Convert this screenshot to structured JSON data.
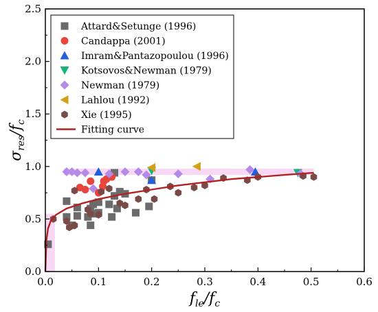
{
  "chart_data": {
    "type": "scatter",
    "xlabel": {
      "main": "f",
      "sub": "le",
      "sep": "/",
      "main2": "f",
      "sub2": "c"
    },
    "ylabel": {
      "main": "σ",
      "sub": "res",
      "sep": "/",
      "main2": "f",
      "sub2": "c"
    },
    "xlim": [
      0.0,
      0.6
    ],
    "ylim": [
      0.0,
      2.5
    ],
    "x_ticks": [
      "0.0",
      "0.1",
      "0.2",
      "0.3",
      "0.4",
      "0.5",
      "0.6"
    ],
    "y_ticks": [
      "0.0",
      "0.5",
      "1.0",
      "1.5",
      "2.0",
      "2.5"
    ],
    "legend_position": "top-left",
    "series": [
      {
        "name": "Attard&Setunge (1996)",
        "marker": "square",
        "color": "#6b6b6b",
        "points": [
          [
            0.005,
            0.26
          ],
          [
            0.04,
            0.52
          ],
          [
            0.04,
            0.67
          ],
          [
            0.05,
            0.44
          ],
          [
            0.06,
            0.53
          ],
          [
            0.06,
            0.61
          ],
          [
            0.08,
            0.52
          ],
          [
            0.085,
            0.6
          ],
          [
            0.09,
            0.55
          ],
          [
            0.085,
            0.44
          ],
          [
            0.09,
            0.64
          ],
          [
            0.1,
            0.56
          ],
          [
            0.1,
            0.66
          ],
          [
            0.12,
            0.64
          ],
          [
            0.125,
            0.52
          ],
          [
            0.13,
            0.72
          ],
          [
            0.135,
            0.6
          ],
          [
            0.14,
            0.76
          ],
          [
            0.15,
            0.74
          ],
          [
            0.17,
            0.56
          ],
          [
            0.195,
            0.62
          ],
          [
            0.2,
            0.87
          ],
          [
            0.13,
            0.94
          ]
        ]
      },
      {
        "name": "Candappa (2001)",
        "marker": "circle",
        "color": "#e8453c",
        "points": [
          [
            0.065,
            0.8
          ],
          [
            0.075,
            0.78
          ],
          [
            0.085,
            0.86
          ],
          [
            0.1,
            0.75
          ],
          [
            0.108,
            0.81
          ],
          [
            0.11,
            0.86
          ],
          [
            0.115,
            0.88
          ],
          [
            0.125,
            0.9
          ]
        ]
      },
      {
        "name": "Imram&Pantazopoulou (1996)",
        "marker": "triangle-up",
        "color": "#2060d8",
        "points": [
          [
            0.1,
            0.95
          ],
          [
            0.2,
            0.87
          ],
          [
            0.395,
            0.95
          ]
        ]
      },
      {
        "name": "Kotsovos&Newman (1979)",
        "marker": "triangle-down",
        "color": "#17b57a",
        "points": [
          [
            0.2,
            0.96
          ],
          [
            0.475,
            0.94
          ]
        ]
      },
      {
        "name": "Newman (1979)",
        "marker": "diamond",
        "color": "#b48ce8",
        "points": [
          [
            0.04,
            0.95
          ],
          [
            0.05,
            0.95
          ],
          [
            0.06,
            0.94
          ],
          [
            0.075,
            0.94
          ],
          [
            0.09,
            0.79
          ],
          [
            0.12,
            0.93
          ],
          [
            0.15,
            0.95
          ],
          [
            0.175,
            0.95
          ],
          [
            0.19,
            0.92
          ],
          [
            0.25,
            0.93
          ],
          [
            0.31,
            0.88
          ],
          [
            0.385,
            0.97
          ],
          [
            0.48,
            0.93
          ]
        ]
      },
      {
        "name": "Lahlou (1992)",
        "marker": "triangle-left",
        "color": "#d4a017",
        "points": [
          [
            0.2,
            0.99
          ],
          [
            0.285,
            1.0
          ]
        ]
      },
      {
        "name": "Xie (1995)",
        "marker": "hexagon",
        "color": "#7a4a48",
        "points": [
          [
            0.015,
            0.5
          ],
          [
            0.04,
            0.48
          ],
          [
            0.045,
            0.42
          ],
          [
            0.055,
            0.44
          ],
          [
            0.055,
            0.77
          ],
          [
            0.08,
            0.59
          ],
          [
            0.085,
            0.55
          ],
          [
            0.1,
            0.54
          ],
          [
            0.105,
            0.76
          ],
          [
            0.12,
            0.79
          ],
          [
            0.14,
            0.65
          ],
          [
            0.15,
            0.63
          ],
          [
            0.175,
            0.69
          ],
          [
            0.19,
            0.78
          ],
          [
            0.205,
            0.69
          ],
          [
            0.235,
            0.81
          ],
          [
            0.25,
            0.75
          ],
          [
            0.28,
            0.8
          ],
          [
            0.3,
            0.82
          ],
          [
            0.335,
            0.89
          ],
          [
            0.38,
            0.87
          ],
          [
            0.4,
            0.9
          ],
          [
            0.485,
            0.91
          ],
          [
            0.505,
            0.9
          ]
        ]
      },
      {
        "name": "Fitting curve",
        "type": "line",
        "color": "#b22222",
        "points": [
          [
            0.0,
            0.0
          ],
          [
            0.002,
            0.3
          ],
          [
            0.005,
            0.41
          ],
          [
            0.01,
            0.48
          ],
          [
            0.02,
            0.54
          ],
          [
            0.04,
            0.6
          ],
          [
            0.07,
            0.65
          ],
          [
            0.1,
            0.69
          ],
          [
            0.15,
            0.74
          ],
          [
            0.2,
            0.78
          ],
          [
            0.25,
            0.82
          ],
          [
            0.3,
            0.85
          ],
          [
            0.35,
            0.88
          ],
          [
            0.4,
            0.9
          ],
          [
            0.45,
            0.92
          ],
          [
            0.505,
            0.94
          ]
        ]
      }
    ]
  }
}
